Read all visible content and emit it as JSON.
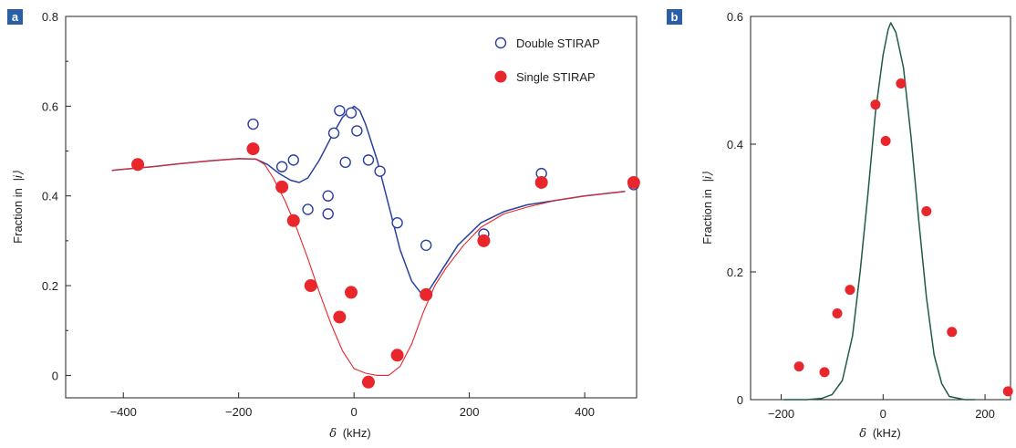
{
  "colors": {
    "double": "#2b3f9e",
    "single_marker": "#e8262b",
    "single_line": "#e8262b",
    "fit_b": "#1f5a4a",
    "panel_tag": "#2a5fa8"
  },
  "chart_data": [
    {
      "type": "scatter",
      "panel_label": "a",
      "xlabel_symbol": "δ",
      "xlabel_unit": "(kHz)",
      "ylabel_prefix": "Fraction in",
      "ylabel_state": "|i⟩",
      "xlim": [
        -500,
        490
      ],
      "ylim": [
        -0.05,
        0.8
      ],
      "x_ticks": [
        -400,
        -200,
        0,
        200,
        400
      ],
      "y_ticks": [
        0,
        0.2,
        0.4,
        0.6,
        0.8
      ],
      "x_tick_labels": [
        "−400",
        "−200",
        "0",
        "200",
        "400"
      ],
      "y_tick_labels": [
        "0",
        "0.2",
        "0.4",
        "0.6",
        "0.8"
      ],
      "legend": {
        "position": "top-right",
        "entries": [
          "Double STIRAP",
          "Single STIRAP"
        ]
      },
      "series": [
        {
          "name": "Double STIRAP",
          "marker": "open-circle",
          "points": [
            [
              -175,
              0.56
            ],
            [
              -125,
              0.465
            ],
            [
              -105,
              0.48
            ],
            [
              -80,
              0.37
            ],
            [
              -45,
              0.4
            ],
            [
              -45,
              0.36
            ],
            [
              -35,
              0.54
            ],
            [
              -25,
              0.59
            ],
            [
              -15,
              0.475
            ],
            [
              -5,
              0.585
            ],
            [
              5,
              0.545
            ],
            [
              25,
              0.48
            ],
            [
              45,
              0.455
            ],
            [
              75,
              0.34
            ],
            [
              125,
              0.29
            ],
            [
              225,
              0.315
            ],
            [
              325,
              0.45
            ],
            [
              485,
              0.425
            ]
          ]
        },
        {
          "name": "Single STIRAP",
          "marker": "filled-circle",
          "points": [
            [
              -375,
              0.47
            ],
            [
              -175,
              0.505
            ],
            [
              -125,
              0.42
            ],
            [
              -105,
              0.345
            ],
            [
              -75,
              0.2
            ],
            [
              -25,
              0.13
            ],
            [
              -5,
              0.185
            ],
            [
              25,
              -0.015
            ],
            [
              75,
              0.045
            ],
            [
              125,
              0.18
            ],
            [
              225,
              0.3
            ],
            [
              325,
              0.43
            ],
            [
              485,
              0.43
            ]
          ]
        }
      ],
      "curves": [
        {
          "series": "Double STIRAP",
          "points": [
            [
              -420,
              0.457
            ],
            [
              -350,
              0.465
            ],
            [
              -300,
              0.472
            ],
            [
              -250,
              0.478
            ],
            [
              -200,
              0.483
            ],
            [
              -170,
              0.482
            ],
            [
              -150,
              0.47
            ],
            [
              -130,
              0.45
            ],
            [
              -110,
              0.435
            ],
            [
              -95,
              0.43
            ],
            [
              -80,
              0.44
            ],
            [
              -60,
              0.48
            ],
            [
              -40,
              0.53
            ],
            [
              -20,
              0.575
            ],
            [
              0,
              0.6
            ],
            [
              10,
              0.59
            ],
            [
              20,
              0.56
            ],
            [
              40,
              0.48
            ],
            [
              60,
              0.38
            ],
            [
              80,
              0.28
            ],
            [
              100,
              0.21
            ],
            [
              115,
              0.185
            ],
            [
              130,
              0.19
            ],
            [
              150,
              0.23
            ],
            [
              180,
              0.29
            ],
            [
              220,
              0.34
            ],
            [
              260,
              0.365
            ],
            [
              300,
              0.38
            ],
            [
              350,
              0.39
            ],
            [
              400,
              0.4
            ],
            [
              470,
              0.41
            ]
          ]
        },
        {
          "series": "Single STIRAP",
          "points": [
            [
              -420,
              0.457
            ],
            [
              -350,
              0.465
            ],
            [
              -300,
              0.472
            ],
            [
              -250,
              0.478
            ],
            [
              -200,
              0.483
            ],
            [
              -170,
              0.482
            ],
            [
              -155,
              0.47
            ],
            [
              -140,
              0.44
            ],
            [
              -120,
              0.39
            ],
            [
              -100,
              0.33
            ],
            [
              -80,
              0.26
            ],
            [
              -60,
              0.185
            ],
            [
              -40,
              0.115
            ],
            [
              -20,
              0.055
            ],
            [
              0,
              0.015
            ],
            [
              20,
              0.005
            ],
            [
              40,
              0.0
            ],
            [
              60,
              0.0
            ],
            [
              80,
              0.02
            ],
            [
              100,
              0.07
            ],
            [
              120,
              0.14
            ],
            [
              140,
              0.2
            ],
            [
              160,
              0.24
            ],
            [
              190,
              0.29
            ],
            [
              220,
              0.33
            ],
            [
              260,
              0.36
            ],
            [
              300,
              0.375
            ],
            [
              350,
              0.39
            ],
            [
              400,
              0.4
            ],
            [
              470,
              0.41
            ]
          ]
        }
      ]
    },
    {
      "type": "scatter",
      "panel_label": "b",
      "xlabel_symbol": "δ",
      "xlabel_unit": "(kHz)",
      "ylabel_prefix": "Fraction in",
      "ylabel_state": "|i⟩",
      "xlim": [
        -260,
        250
      ],
      "ylim": [
        0,
        0.6
      ],
      "x_ticks": [
        -200,
        0,
        200
      ],
      "y_ticks": [
        0,
        0.2,
        0.4,
        0.6
      ],
      "x_tick_labels": [
        "−200",
        "0",
        "200"
      ],
      "y_tick_labels": [
        "0",
        "0.2",
        "0.4",
        "0.6"
      ],
      "series": [
        {
          "name": "",
          "marker": "filled-circle",
          "points": [
            [
              -165,
              0.052
            ],
            [
              -115,
              0.043
            ],
            [
              -90,
              0.135
            ],
            [
              -65,
              0.172
            ],
            [
              -15,
              0.462
            ],
            [
              5,
              0.405
            ],
            [
              35,
              0.495
            ],
            [
              85,
              0.295
            ],
            [
              135,
              0.106
            ],
            [
              245,
              0.013
            ]
          ]
        }
      ],
      "curves": [
        {
          "series": "",
          "points": [
            [
              -195,
              0.0
            ],
            [
              -150,
              0.0
            ],
            [
              -120,
              0.002
            ],
            [
              -100,
              0.008
            ],
            [
              -80,
              0.03
            ],
            [
              -60,
              0.1
            ],
            [
              -45,
              0.2
            ],
            [
              -30,
              0.32
            ],
            [
              -15,
              0.45
            ],
            [
              0,
              0.54
            ],
            [
              10,
              0.58
            ],
            [
              15,
              0.59
            ],
            [
              25,
              0.575
            ],
            [
              40,
              0.52
            ],
            [
              55,
              0.41
            ],
            [
              70,
              0.28
            ],
            [
              85,
              0.16
            ],
            [
              100,
              0.07
            ],
            [
              115,
              0.025
            ],
            [
              130,
              0.005
            ],
            [
              160,
              0.0
            ],
            [
              180,
              0.0
            ]
          ]
        }
      ]
    }
  ]
}
